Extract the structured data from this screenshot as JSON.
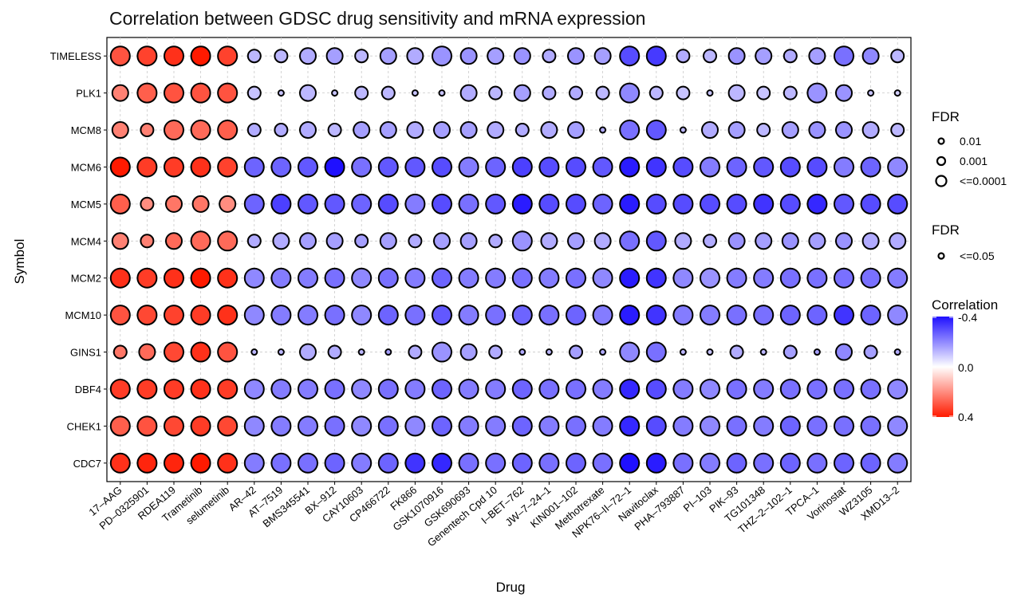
{
  "chart_data": {
    "type": "scatter",
    "title": "Correlation between GDSC drug sensitivity and mRNA expression",
    "xlabel": "Drug",
    "ylabel": "Symbol",
    "drugs": [
      "17-AAG",
      "PD-0325901",
      "RDEA119",
      "Trametinib",
      "selumetinib",
      "AR-42",
      "AT-7519",
      "BMS345541",
      "BX-912",
      "CAY10603",
      "CP466722",
      "FK866",
      "GSK1070916",
      "GSK690693",
      "Genentech Cpd 10",
      "I-BET-762",
      "JW-7-24-1",
      "KIN001-102",
      "Methotrexate",
      "NPK76-II-72-1",
      "Navitoclax",
      "PHA-793887",
      "PI-103",
      "PIK-93",
      "TG101348",
      "THZ-2-102-1",
      "TPCA-1",
      "Vorinostat",
      "WZ3105",
      "XMD13-2"
    ],
    "genes": [
      "TIMELESS",
      "PLK1",
      "MCM8",
      "MCM6",
      "MCM5",
      "MCM4",
      "MCM2",
      "MCM10",
      "GINS1",
      "DBF4",
      "CHEK1",
      "CDC7"
    ],
    "correlation": [
      [
        0.3,
        0.33,
        0.36,
        0.4,
        0.33,
        -0.12,
        -0.12,
        -0.14,
        -0.16,
        -0.12,
        -0.16,
        -0.14,
        -0.18,
        -0.18,
        -0.16,
        -0.18,
        -0.14,
        -0.18,
        -0.16,
        -0.3,
        -0.33,
        -0.14,
        -0.12,
        -0.18,
        -0.16,
        -0.14,
        -0.16,
        -0.24,
        -0.2,
        -0.12
      ],
      [
        0.22,
        0.28,
        0.3,
        0.3,
        0.3,
        -0.1,
        -0.1,
        -0.12,
        -0.1,
        -0.12,
        -0.12,
        -0.1,
        -0.1,
        -0.14,
        -0.12,
        -0.16,
        -0.14,
        -0.14,
        -0.12,
        -0.2,
        -0.12,
        -0.1,
        -0.1,
        -0.12,
        -0.1,
        -0.12,
        -0.18,
        -0.18,
        -0.1,
        -0.08
      ],
      [
        0.22,
        0.22,
        0.26,
        0.26,
        0.28,
        -0.14,
        -0.14,
        -0.14,
        -0.12,
        -0.16,
        -0.16,
        -0.14,
        -0.16,
        -0.16,
        -0.14,
        -0.14,
        -0.14,
        -0.16,
        -0.14,
        -0.24,
        -0.28,
        -0.12,
        -0.14,
        -0.16,
        -0.12,
        -0.16,
        -0.18,
        -0.18,
        -0.14,
        -0.12
      ],
      [
        0.4,
        0.34,
        0.34,
        0.36,
        0.33,
        -0.26,
        -0.26,
        -0.28,
        -0.4,
        -0.24,
        -0.28,
        -0.28,
        -0.3,
        -0.22,
        -0.26,
        -0.32,
        -0.3,
        -0.3,
        -0.28,
        -0.38,
        -0.34,
        -0.3,
        -0.22,
        -0.26,
        -0.28,
        -0.3,
        -0.3,
        -0.22,
        -0.26,
        -0.2
      ],
      [
        0.28,
        0.2,
        0.24,
        0.24,
        0.2,
        -0.26,
        -0.32,
        -0.28,
        -0.28,
        -0.26,
        -0.3,
        -0.22,
        -0.3,
        -0.24,
        -0.28,
        -0.38,
        -0.3,
        -0.3,
        -0.26,
        -0.38,
        -0.3,
        -0.3,
        -0.3,
        -0.3,
        -0.34,
        -0.3,
        -0.36,
        -0.28,
        -0.3,
        -0.3
      ],
      [
        0.22,
        0.22,
        0.26,
        0.26,
        0.26,
        -0.14,
        -0.14,
        -0.16,
        -0.16,
        -0.16,
        -0.16,
        -0.14,
        -0.16,
        -0.16,
        -0.14,
        -0.18,
        -0.14,
        -0.16,
        -0.14,
        -0.24,
        -0.28,
        -0.14,
        -0.14,
        -0.18,
        -0.16,
        -0.18,
        -0.16,
        -0.18,
        -0.14,
        -0.14
      ],
      [
        0.36,
        0.34,
        0.36,
        0.4,
        0.36,
        -0.2,
        -0.22,
        -0.22,
        -0.24,
        -0.2,
        -0.24,
        -0.22,
        -0.26,
        -0.22,
        -0.22,
        -0.24,
        -0.22,
        -0.24,
        -0.2,
        -0.38,
        -0.34,
        -0.2,
        -0.18,
        -0.22,
        -0.22,
        -0.24,
        -0.24,
        -0.24,
        -0.24,
        -0.22
      ],
      [
        0.3,
        0.32,
        0.33,
        0.34,
        0.36,
        -0.2,
        -0.22,
        -0.22,
        -0.24,
        -0.2,
        -0.26,
        -0.24,
        -0.28,
        -0.22,
        -0.24,
        -0.26,
        -0.24,
        -0.26,
        -0.22,
        -0.38,
        -0.34,
        -0.22,
        -0.22,
        -0.24,
        -0.24,
        -0.26,
        -0.26,
        -0.34,
        -0.26,
        -0.2
      ],
      [
        0.24,
        0.26,
        0.32,
        0.36,
        0.3,
        -0.12,
        -0.12,
        -0.14,
        -0.14,
        -0.12,
        -0.16,
        -0.14,
        -0.18,
        -0.16,
        -0.14,
        -0.14,
        -0.12,
        -0.16,
        -0.14,
        -0.2,
        -0.24,
        -0.12,
        -0.1,
        -0.14,
        -0.12,
        -0.16,
        -0.16,
        -0.2,
        -0.16,
        -0.14
      ],
      [
        0.34,
        0.34,
        0.34,
        0.36,
        0.34,
        -0.2,
        -0.22,
        -0.22,
        -0.24,
        -0.2,
        -0.24,
        -0.22,
        -0.26,
        -0.22,
        -0.22,
        -0.26,
        -0.24,
        -0.24,
        -0.22,
        -0.36,
        -0.3,
        -0.22,
        -0.2,
        -0.24,
        -0.22,
        -0.24,
        -0.24,
        -0.24,
        -0.24,
        -0.2
      ],
      [
        0.28,
        0.3,
        0.32,
        0.34,
        0.32,
        -0.2,
        -0.22,
        -0.22,
        -0.24,
        -0.2,
        -0.24,
        -0.2,
        -0.26,
        -0.22,
        -0.22,
        -0.26,
        -0.22,
        -0.24,
        -0.22,
        -0.36,
        -0.3,
        -0.22,
        -0.2,
        -0.24,
        -0.22,
        -0.26,
        -0.24,
        -0.24,
        -0.24,
        -0.2
      ],
      [
        0.36,
        0.38,
        0.38,
        0.4,
        0.36,
        -0.22,
        -0.24,
        -0.24,
        -0.26,
        -0.22,
        -0.26,
        -0.34,
        -0.36,
        -0.24,
        -0.24,
        -0.26,
        -0.24,
        -0.26,
        -0.24,
        -0.4,
        -0.38,
        -0.24,
        -0.22,
        -0.26,
        -0.24,
        -0.26,
        -0.24,
        -0.26,
        -0.26,
        -0.22
      ]
    ],
    "size_scale": [
      [
        3,
        3,
        3,
        3,
        3,
        1,
        1,
        2,
        2,
        1,
        2,
        2,
        3,
        2,
        2,
        2,
        1,
        2,
        2,
        3,
        3,
        1,
        1,
        2,
        2,
        1,
        2,
        3,
        2,
        1
      ],
      [
        2,
        3,
        3,
        3,
        3,
        1,
        0,
        2,
        0,
        1,
        1,
        0,
        0,
        2,
        1,
        2,
        1,
        1,
        1,
        3,
        1,
        1,
        0,
        2,
        1,
        1,
        3,
        2,
        0,
        0
      ],
      [
        2,
        1,
        3,
        3,
        3,
        1,
        1,
        2,
        1,
        2,
        2,
        2,
        2,
        2,
        2,
        1,
        2,
        2,
        0,
        3,
        3,
        0,
        2,
        2,
        1,
        2,
        2,
        2,
        2,
        1
      ],
      [
        3,
        3,
        3,
        3,
        3,
        3,
        3,
        3,
        3,
        3,
        3,
        3,
        3,
        3,
        3,
        3,
        3,
        3,
        3,
        3,
        3,
        3,
        3,
        3,
        3,
        3,
        3,
        3,
        3,
        3
      ],
      [
        3,
        1,
        2,
        2,
        2,
        3,
        3,
        3,
        3,
        3,
        3,
        3,
        3,
        3,
        3,
        3,
        3,
        3,
        3,
        3,
        3,
        3,
        3,
        3,
        3,
        3,
        3,
        3,
        3,
        3
      ],
      [
        2,
        1,
        2,
        3,
        3,
        1,
        2,
        2,
        2,
        1,
        2,
        1,
        2,
        2,
        1,
        3,
        2,
        2,
        2,
        3,
        3,
        2,
        1,
        2,
        2,
        2,
        2,
        2,
        2,
        2
      ],
      [
        3,
        3,
        3,
        3,
        3,
        3,
        3,
        3,
        3,
        3,
        3,
        3,
        3,
        3,
        3,
        3,
        3,
        3,
        3,
        3,
        3,
        3,
        3,
        3,
        3,
        3,
        3,
        3,
        3,
        3
      ],
      [
        3,
        3,
        3,
        3,
        3,
        3,
        3,
        3,
        3,
        3,
        3,
        3,
        3,
        3,
        3,
        3,
        3,
        3,
        3,
        3,
        3,
        3,
        3,
        3,
        3,
        3,
        3,
        3,
        3,
        3
      ],
      [
        1,
        2,
        3,
        3,
        3,
        0,
        0,
        2,
        1,
        0,
        0,
        1,
        3,
        2,
        1,
        0,
        0,
        1,
        0,
        3,
        3,
        0,
        0,
        1,
        0,
        1,
        0,
        2,
        1,
        0
      ],
      [
        3,
        3,
        3,
        3,
        3,
        3,
        3,
        3,
        3,
        3,
        3,
        3,
        3,
        3,
        3,
        3,
        3,
        3,
        3,
        3,
        3,
        3,
        3,
        3,
        3,
        3,
        3,
        3,
        3,
        3
      ],
      [
        3,
        3,
        3,
        3,
        3,
        3,
        3,
        3,
        3,
        3,
        3,
        3,
        3,
        3,
        3,
        3,
        3,
        3,
        3,
        3,
        3,
        3,
        3,
        3,
        3,
        3,
        3,
        3,
        3,
        3
      ],
      [
        3,
        3,
        3,
        3,
        3,
        3,
        3,
        3,
        3,
        3,
        3,
        3,
        3,
        3,
        3,
        3,
        3,
        3,
        3,
        3,
        3,
        3,
        3,
        3,
        3,
        3,
        3,
        3,
        3,
        3
      ]
    ],
    "legend_fdr": {
      "title": "FDR",
      "labels": [
        "0.01",
        "0.001",
        "<=0.0001"
      ]
    },
    "legend_fdr_sig": {
      "title": "FDR",
      "labels": [
        "<=0.05"
      ]
    },
    "legend_correlation": {
      "title": "Correlation",
      "ticks": [
        "-0.4",
        "0.0",
        "0.4"
      ],
      "range": [
        -0.4,
        0.4
      ]
    },
    "colors": {
      "negative": "#1f10ff",
      "neutral": "#ffffff",
      "positive": "#ff1a00"
    },
    "legend_position": "right",
    "grid": true
  }
}
